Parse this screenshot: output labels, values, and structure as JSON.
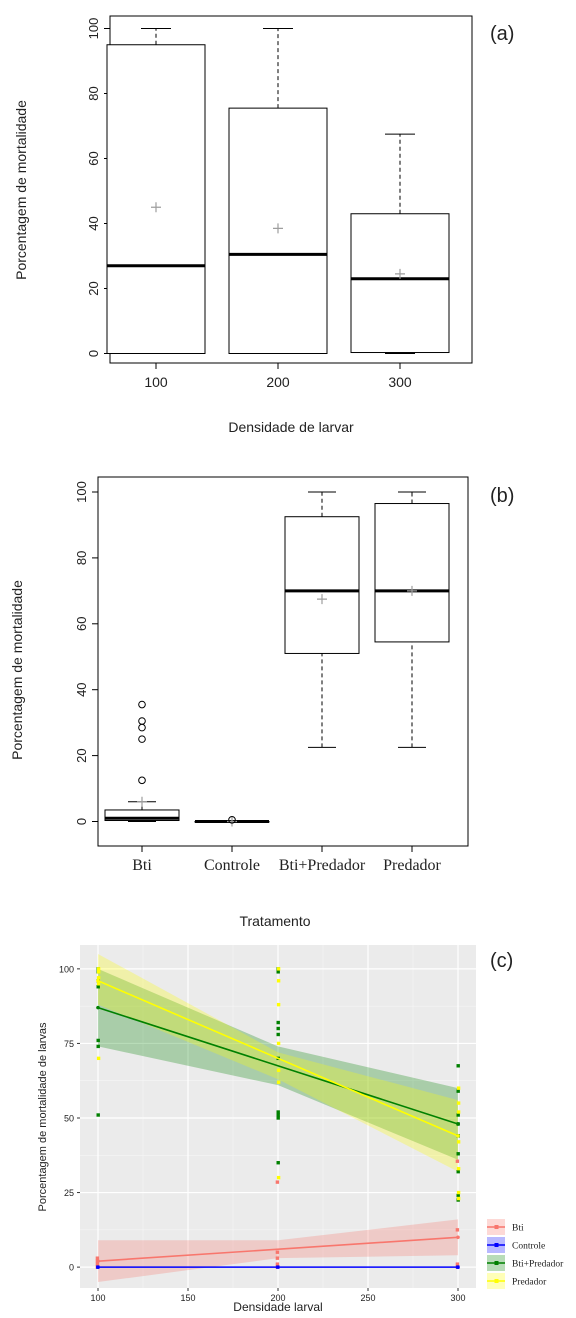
{
  "chart_data": [
    {
      "type": "boxplot",
      "panel_label": "(a)",
      "xlabel": "Densidade de larvar",
      "ylabel": "Porcentagem de mortalidade",
      "ylim": [
        0,
        100
      ],
      "yticks": [
        "0",
        "20",
        "40",
        "60",
        "80",
        "100"
      ],
      "categories": [
        "100",
        "200",
        "300"
      ],
      "boxes": [
        {
          "min": 0,
          "q1": 0,
          "median": 27,
          "q3": 95,
          "max": 100,
          "mean": 45
        },
        {
          "min": 0,
          "q1": 0,
          "median": 30.5,
          "q3": 75.5,
          "max": 100,
          "mean": 38.5
        },
        {
          "min": 0,
          "q1": 0.3,
          "median": 23,
          "q3": 43,
          "max": 67.5,
          "mean": 24.5
        }
      ]
    },
    {
      "type": "boxplot",
      "panel_label": "(b)",
      "xlabel": "Tratamento",
      "ylabel": "Porcentagem de mortalidade",
      "ylim": [
        0,
        100
      ],
      "yticks": [
        "0",
        "20",
        "40",
        "60",
        "80",
        "100"
      ],
      "categories": [
        "Bti",
        "Controle",
        "Bti+Predador",
        "Predador"
      ],
      "boxes": [
        {
          "min": 0,
          "q1": 0.3,
          "median": 1,
          "q3": 3.5,
          "max": 6,
          "mean": 6,
          "outliers": [
            12.5,
            25,
            28.5,
            30.5,
            35.5
          ]
        },
        {
          "min": 0,
          "q1": 0,
          "median": 0,
          "q3": 0,
          "max": 0,
          "mean": 0,
          "outliers": [
            0.5
          ]
        },
        {
          "min": 22.5,
          "q1": 51,
          "median": 70,
          "q3": 92.5,
          "max": 100,
          "mean": 67.5
        },
        {
          "min": 22.5,
          "q1": 54.5,
          "median": 70,
          "q3": 96.5,
          "max": 100,
          "mean": 70
        }
      ]
    },
    {
      "type": "scatter",
      "panel_label": "(c)",
      "xlabel": "Densidade larval",
      "ylabel": "Porcentagem de mortalidade de larvas",
      "xlim": [
        90,
        310
      ],
      "ylim": [
        -7,
        108
      ],
      "xticks": [
        "100",
        "150",
        "200",
        "250",
        "300"
      ],
      "yticks": [
        "0",
        "25",
        "50",
        "75",
        "100"
      ],
      "legend_position": "right",
      "series": [
        {
          "name": "Bti",
          "color": "#f8766d",
          "points": [
            [
              100,
              0
            ],
            [
              100,
              1
            ],
            [
              100,
              2
            ],
            [
              100,
              3
            ],
            [
              200,
              0
            ],
            [
              200,
              1
            ],
            [
              200,
              3
            ],
            [
              200,
              5
            ],
            [
              200,
              28.5
            ],
            [
              300,
              0
            ],
            [
              300,
              1
            ],
            [
              300,
              12.5
            ],
            [
              300,
              35.5
            ]
          ],
          "fit": [
            [
              100,
              2
            ],
            [
              300,
              10
            ]
          ],
          "band": [
            [
              100,
              -5,
              9
            ],
            [
              200,
              3,
              9
            ],
            [
              300,
              4,
              16
            ]
          ]
        },
        {
          "name": "Controle",
          "color": "#0000ff",
          "points": [
            [
              100,
              0
            ],
            [
              200,
              0
            ],
            [
              300,
              0
            ]
          ],
          "fit": [
            [
              100,
              0
            ],
            [
              300,
              0
            ]
          ]
        },
        {
          "name": "Bti+Predador",
          "color": "#008000",
          "points": [
            [
              100,
              100
            ],
            [
              100,
              99
            ],
            [
              100,
              96
            ],
            [
              100,
              94
            ],
            [
              100,
              76
            ],
            [
              100,
              74
            ],
            [
              100,
              51
            ],
            [
              200,
              100
            ],
            [
              200,
              99
            ],
            [
              200,
              82
            ],
            [
              200,
              80
            ],
            [
              200,
              78
            ],
            [
              200,
              70
            ],
            [
              200,
              52
            ],
            [
              200,
              51
            ],
            [
              200,
              50
            ],
            [
              200,
              35
            ],
            [
              300,
              67.5
            ],
            [
              300,
              59
            ],
            [
              300,
              51
            ],
            [
              300,
              48
            ],
            [
              300,
              44
            ],
            [
              300,
              38
            ],
            [
              300,
              32
            ],
            [
              300,
              24
            ],
            [
              300,
              22.5
            ]
          ],
          "fit": [
            [
              100,
              87
            ],
            [
              300,
              48
            ]
          ],
          "band": [
            [
              100,
              74,
              100
            ],
            [
              200,
              61,
              74
            ],
            [
              300,
              36,
              60
            ]
          ]
        },
        {
          "name": "Predador",
          "color": "#ffff00",
          "points": [
            [
              100,
              100
            ],
            [
              100,
              99
            ],
            [
              100,
              97
            ],
            [
              100,
              95
            ],
            [
              100,
              70
            ],
            [
              200,
              100
            ],
            [
              200,
              96
            ],
            [
              200,
              88
            ],
            [
              200,
              75
            ],
            [
              200,
              66
            ],
            [
              200,
              62
            ],
            [
              200,
              30
            ],
            [
              300,
              60
            ],
            [
              300,
              55
            ],
            [
              300,
              52
            ],
            [
              300,
              42
            ],
            [
              300,
              33
            ],
            [
              300,
              25
            ],
            [
              300,
              23
            ]
          ],
          "fit": [
            [
              100,
              96
            ],
            [
              300,
              44
            ]
          ],
          "band": [
            [
              100,
              88,
              105
            ],
            [
              200,
              63,
              72
            ],
            [
              300,
              32,
              56
            ]
          ]
        }
      ]
    }
  ]
}
